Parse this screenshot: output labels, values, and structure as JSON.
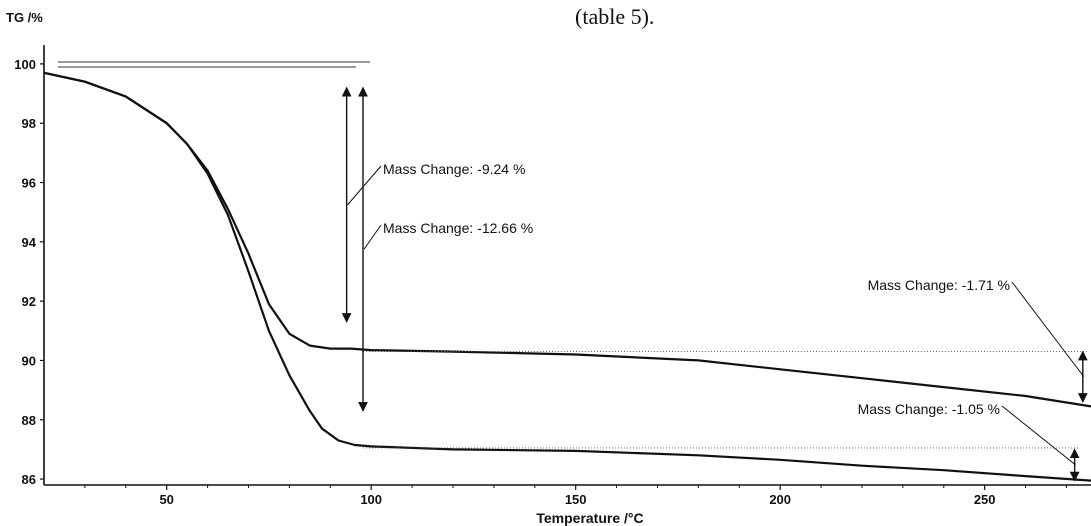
{
  "caption_fragment": "(table 5).",
  "chart_data": {
    "type": "line",
    "ylabel": "TG /%",
    "xlabel": "Temperature /°C",
    "xlim": [
      20,
      276
    ],
    "ylim": [
      85.8,
      100.3
    ],
    "x_ticks": [
      50,
      100,
      150,
      200,
      250
    ],
    "y_ticks": [
      86,
      88,
      90,
      92,
      94,
      96,
      98,
      100
    ],
    "series": [
      {
        "x": [
          20,
          30,
          40,
          50,
          55,
          60,
          65,
          70,
          75,
          80,
          85,
          90,
          95,
          100,
          120,
          150,
          180,
          200,
          220,
          240,
          260,
          276
        ],
        "y": [
          99.7,
          99.4,
          98.9,
          98.0,
          97.3,
          96.4,
          95.1,
          93.6,
          91.9,
          90.9,
          90.5,
          90.4,
          90.4,
          90.35,
          90.3,
          90.2,
          90.0,
          89.7,
          89.4,
          89.1,
          88.8,
          88.45
        ]
      },
      {
        "x": [
          20,
          30,
          40,
          50,
          55,
          60,
          65,
          70,
          75,
          80,
          85,
          88,
          92,
          96,
          100,
          120,
          150,
          180,
          200,
          220,
          240,
          260,
          276
        ],
        "y": [
          99.7,
          99.4,
          98.9,
          98.0,
          97.3,
          96.3,
          94.9,
          93.0,
          91.0,
          89.5,
          88.3,
          87.7,
          87.3,
          87.15,
          87.1,
          87.0,
          86.95,
          86.8,
          86.65,
          86.45,
          86.3,
          86.1,
          85.95
        ]
      }
    ],
    "annotations": [
      {
        "label": "Mass Change: -9.24 %",
        "x": 94,
        "y_from": 99.2,
        "y_to": 91.3
      },
      {
        "label": "Mass Change: -12.66 %",
        "x": 98,
        "y_from": 99.2,
        "y_to": 88.3
      },
      {
        "label": "Mass Change: -1.71 %",
        "x": 274,
        "y_from": 90.3,
        "y_to": 88.6
      },
      {
        "label": "Mass Change: -1.05 %",
        "x": 272,
        "y_from": 87.0,
        "y_to": 85.95
      }
    ]
  }
}
